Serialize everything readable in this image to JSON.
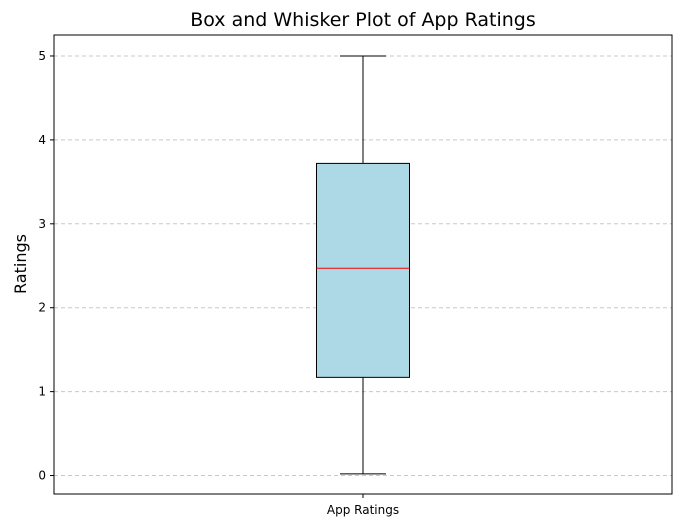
{
  "chart_data": {
    "type": "box",
    "title": "Box and Whisker Plot of App Ratings",
    "xlabel": "",
    "ylabel": "Ratings",
    "categories": [
      "App Ratings"
    ],
    "series": [
      {
        "whisker_low": 0.02,
        "q1": 1.17,
        "median": 2.47,
        "q3": 3.72,
        "whisker_high": 5.0
      }
    ],
    "yticks": [
      0,
      1,
      2,
      3,
      4,
      5
    ],
    "ylim": [
      -0.22,
      5.25
    ],
    "grid": {
      "y": true,
      "style": "dashed"
    },
    "colors": {
      "box_fill": "#add8e6",
      "box_edge": "#000000",
      "median": "#ff0000",
      "whisker": "#000000",
      "grid": "#c8c8c8"
    }
  }
}
